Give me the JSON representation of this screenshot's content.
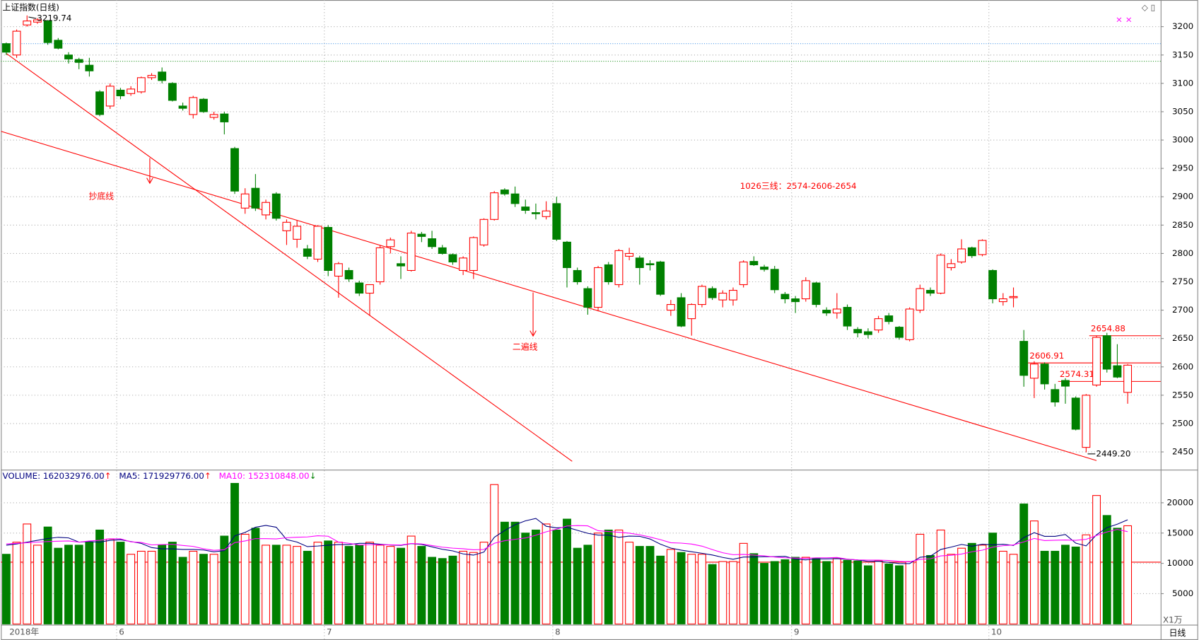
{
  "chart_data": {
    "type": "candlestick",
    "title": "上证指数(日线)",
    "up_color": "#ff0000",
    "down_color": "#008000",
    "ylim": [
      2420,
      3247
    ],
    "yticks": [
      3200,
      3150,
      3100,
      3050,
      3000,
      2950,
      2900,
      2850,
      2800,
      2750,
      2700,
      2650,
      2600,
      2550,
      2500,
      2450
    ],
    "grid": true,
    "x_labels": [
      {
        "index": 0,
        "label": "2018年"
      },
      {
        "index": 11,
        "label": "6"
      },
      {
        "index": 31,
        "label": "7"
      },
      {
        "index": 53,
        "label": "8"
      },
      {
        "index": 76,
        "label": "9"
      },
      {
        "index": 95,
        "label": "10"
      }
    ],
    "candles": [
      [
        3170,
        3172,
        3150,
        3155
      ],
      [
        3150,
        3195,
        3145,
        3192
      ],
      [
        3203,
        3219.74,
        3200,
        3210
      ],
      [
        3208,
        3215,
        3205,
        3212
      ],
      [
        3210,
        3212,
        3168,
        3172
      ],
      [
        3176,
        3180,
        3160,
        3162
      ],
      [
        3150,
        3155,
        3135,
        3143
      ],
      [
        3142,
        3145,
        3125,
        3137
      ],
      [
        3132,
        3145,
        3112,
        3122
      ],
      [
        3085,
        3088,
        3042,
        3045
      ],
      [
        3060,
        3100,
        3055,
        3095
      ],
      [
        3088,
        3092,
        3072,
        3078
      ],
      [
        3082,
        3095,
        3078,
        3090
      ],
      [
        3085,
        3112,
        3082,
        3110
      ],
      [
        3110,
        3118,
        3106,
        3114
      ],
      [
        3120,
        3128,
        3100,
        3105
      ],
      [
        3100,
        3102,
        3068,
        3070
      ],
      [
        3060,
        3066,
        3052,
        3056
      ],
      [
        3045,
        3078,
        3038,
        3075
      ],
      [
        3072,
        3074,
        3048,
        3050
      ],
      [
        3040,
        3050,
        3036,
        3045
      ],
      [
        3046,
        3050,
        3010,
        3032
      ],
      [
        2985,
        2988,
        2905,
        2910
      ],
      [
        2880,
        2915,
        2870,
        2905
      ],
      [
        2915,
        2940,
        2875,
        2880
      ],
      [
        2868,
        2895,
        2860,
        2890
      ],
      [
        2905,
        2908,
        2858,
        2862
      ],
      [
        2840,
        2860,
        2815,
        2855
      ],
      [
        2825,
        2858,
        2810,
        2848
      ],
      [
        2808,
        2815,
        2790,
        2795
      ],
      [
        2790,
        2850,
        2785,
        2848
      ],
      [
        2846,
        2850,
        2760,
        2770
      ],
      [
        2760,
        2785,
        2722,
        2782
      ],
      [
        2770,
        2775,
        2750,
        2755
      ],
      [
        2748,
        2752,
        2725,
        2730
      ],
      [
        2730,
        2745,
        2690,
        2745
      ],
      [
        2750,
        2815,
        2745,
        2810
      ],
      [
        2812,
        2828,
        2800,
        2824
      ],
      [
        2782,
        2795,
        2755,
        2778
      ],
      [
        2770,
        2840,
        2768,
        2836
      ],
      [
        2834,
        2838,
        2820,
        2830
      ],
      [
        2826,
        2840,
        2808,
        2812
      ],
      [
        2810,
        2815,
        2798,
        2800
      ],
      [
        2798,
        2800,
        2780,
        2785
      ],
      [
        2770,
        2795,
        2762,
        2792
      ],
      [
        2770,
        2830,
        2755,
        2828
      ],
      [
        2815,
        2862,
        2812,
        2860
      ],
      [
        2860,
        2910,
        2858,
        2907
      ],
      [
        2912,
        2915,
        2902,
        2905
      ],
      [
        2905,
        2918,
        2882,
        2888
      ],
      [
        2882,
        2895,
        2870,
        2876
      ],
      [
        2872,
        2888,
        2860,
        2870
      ],
      [
        2865,
        2892,
        2860,
        2875
      ],
      [
        2888,
        2900,
        2822,
        2825
      ],
      [
        2820,
        2822,
        2740,
        2775
      ],
      [
        2770,
        2775,
        2745,
        2750
      ],
      [
        2738,
        2742,
        2692,
        2705
      ],
      [
        2705,
        2778,
        2698,
        2775
      ],
      [
        2780,
        2785,
        2745,
        2750
      ],
      [
        2745,
        2808,
        2740,
        2805
      ],
      [
        2795,
        2810,
        2788,
        2800
      ],
      [
        2792,
        2796,
        2745,
        2775
      ],
      [
        2782,
        2788,
        2770,
        2780
      ],
      [
        2785,
        2787,
        2725,
        2728
      ],
      [
        2700,
        2718,
        2690,
        2710
      ],
      [
        2722,
        2730,
        2670,
        2672
      ],
      [
        2685,
        2712,
        2655,
        2710
      ],
      [
        2710,
        2745,
        2705,
        2742
      ],
      [
        2738,
        2742,
        2718,
        2722
      ],
      [
        2718,
        2735,
        2705,
        2730
      ],
      [
        2718,
        2740,
        2708,
        2735
      ],
      [
        2745,
        2788,
        2740,
        2785
      ],
      [
        2786,
        2795,
        2778,
        2780
      ],
      [
        2776,
        2780,
        2768,
        2772
      ],
      [
        2772,
        2778,
        2730,
        2736
      ],
      [
        2728,
        2732,
        2712,
        2720
      ],
      [
        2720,
        2725,
        2695,
        2715
      ],
      [
        2720,
        2758,
        2715,
        2752
      ],
      [
        2748,
        2750,
        2705,
        2710
      ],
      [
        2700,
        2705,
        2690,
        2695
      ],
      [
        2695,
        2730,
        2685,
        2702
      ],
      [
        2705,
        2710,
        2665,
        2672
      ],
      [
        2666,
        2670,
        2652,
        2660
      ],
      [
        2662,
        2668,
        2650,
        2657
      ],
      [
        2665,
        2690,
        2660,
        2685
      ],
      [
        2690,
        2695,
        2675,
        2680
      ],
      [
        2670,
        2672,
        2648,
        2652
      ],
      [
        2648,
        2705,
        2645,
        2702
      ],
      [
        2700,
        2745,
        2695,
        2738
      ],
      [
        2735,
        2740,
        2725,
        2730
      ],
      [
        2730,
        2800,
        2728,
        2797
      ],
      [
        2775,
        2790,
        2770,
        2782
      ],
      [
        2785,
        2825,
        2782,
        2808
      ],
      [
        2810,
        2812,
        2792,
        2796
      ],
      [
        2798,
        2825,
        2795,
        2823
      ],
      [
        2770,
        2772,
        2712,
        2720
      ],
      [
        2715,
        2730,
        2708,
        2720
      ],
      [
        2722,
        2740,
        2705,
        2724
      ],
      [
        2645,
        2665,
        2565,
        2585
      ],
      [
        2580,
        2610,
        2545,
        2605
      ],
      [
        2605,
        2608,
        2560,
        2570
      ],
      [
        2560,
        2570,
        2530,
        2538
      ],
      [
        2576,
        2580,
        2535,
        2566
      ],
      [
        2545,
        2548,
        2488,
        2490
      ],
      [
        2458,
        2552,
        2449.2,
        2550
      ],
      [
        2568,
        2654.88,
        2565,
        2652
      ],
      [
        2655,
        2660,
        2590,
        2596
      ],
      [
        2602,
        2640,
        2580,
        2582
      ],
      [
        2555,
        2605,
        2535,
        2603
      ]
    ],
    "high_label": {
      "index": 2,
      "label": "3219.74"
    },
    "low_label": {
      "index": 104,
      "label": "2449.20"
    },
    "ref_lines": [
      {
        "value": 3170,
        "color": "#3a8ee6"
      },
      {
        "value": 3139,
        "color": "#2e9a2e"
      }
    ],
    "levels": [
      {
        "value": 2654.88,
        "label": "2654.88",
        "from": 104.3
      },
      {
        "value": 2606.91,
        "label": "2606.91",
        "from": 98.4
      },
      {
        "value": 2574.31,
        "label": "2574.31",
        "from": 101.3
      }
    ],
    "trendlines": [
      {
        "x": [
          0,
          54.5
        ],
        "y": [
          3152.7,
          2433.5
        ],
        "color": "#ff0000"
      },
      {
        "x": [
          -0.5,
          105
        ],
        "y": [
          3015.3,
          2434.8
        ],
        "color": "#ff0000"
      }
    ],
    "annotations": [
      "抄底线",
      "二遍线",
      "1026三线：2574-2606-2654"
    ],
    "volume": {
      "header": [
        {
          "label": "VOLUME: 162032976.00",
          "color": "#000080"
        },
        {
          "label": "MA5: 171929776.00",
          "color": "#000080"
        },
        {
          "label": "MA10: 152310848.00",
          "color": "#ff00ff"
        }
      ],
      "unit_label": "X1万",
      "ylim": [
        0,
        25330
      ],
      "yticks": [
        20000,
        15000,
        10000,
        5000
      ],
      "ref_line": 10200,
      "values": [
        11500,
        13500,
        16500,
        13000,
        16000,
        12500,
        13000,
        13000,
        13500,
        15500,
        14000,
        13500,
        11500,
        12000,
        12000,
        13000,
        13500,
        11000,
        12000,
        11500,
        11500,
        14500,
        23200,
        14800,
        15800,
        13000,
        13000,
        13000,
        12800,
        12000,
        13500,
        13700,
        13500,
        12800,
        13000,
        13500,
        13000,
        12800,
        12500,
        14500,
        12800,
        11000,
        10800,
        11200,
        12000,
        11800,
        13500,
        23000,
        16800,
        16800,
        15000,
        15500,
        16500,
        15500,
        17300,
        12500,
        13000,
        15000,
        15500,
        15500,
        13500,
        12800,
        12800,
        11200,
        12300,
        11800,
        11500,
        11500,
        9800,
        10300,
        10300,
        13300,
        11600,
        10000,
        10300,
        10600,
        11000,
        11000,
        10800,
        10300,
        10800,
        10500,
        10400,
        9600,
        10400,
        9900,
        9600,
        10300,
        14800,
        11300,
        15500,
        11500,
        12500,
        13300,
        13000,
        15000,
        12000,
        11500,
        19800,
        17000,
        12000,
        12000,
        13000,
        12700,
        14700,
        21200,
        17900,
        15800,
        16203.2976
      ],
      "ma": [
        {
          "name": "MA5",
          "color": "#000080",
          "values": [
            13000,
            13200,
            13500,
            13800,
            14100,
            14300,
            14200,
            13500,
            13600,
            13500,
            13800,
            13900,
            13600,
            13300,
            12600,
            12400,
            12400,
            12300,
            12300,
            12200,
            11900,
            12100,
            14540,
            15100,
            15960,
            16260,
            15960,
            13920,
            13520,
            12760,
            12860,
            13000,
            13100,
            13100,
            13300,
            13300,
            13160,
            13020,
            12960,
            13260,
            13120,
            12720,
            12320,
            12060,
            11560,
            11360,
            11860,
            14300,
            15420,
            16380,
            17020,
            17420,
            16120,
            15860,
            15960,
            15460,
            14960,
            14660,
            14660,
            14300,
            14500,
            14460,
            14020,
            13160,
            12520,
            12180,
            11920,
            11660,
            11380,
            10980,
            10680,
            11040,
            11060,
            11100,
            11100,
            11160,
            10700,
            10580,
            10740,
            10740,
            10780,
            10680,
            10560,
            10320,
            10340,
            10160,
            9980,
            9960,
            11000,
            11180,
            12300,
            12680,
            13120,
            12820,
            13160,
            13060,
            13160,
            12960,
            14260,
            15060,
            14460,
            14460,
            14760,
            13340,
            12880,
            14720,
            15900,
            16460,
            17192.9776
          ]
        },
        {
          "name": "MA10",
          "color": "#ff00ff",
          "values": [
            13200,
            13300,
            13400,
            13500,
            13600,
            13650,
            13700,
            13500,
            13700,
            13800,
            14050,
            14050,
            13550,
            13450,
            13050,
            13100,
            13150,
            12950,
            12800,
            12400,
            12150,
            12250,
            13420,
            13700,
            14080,
            14080,
            14030,
            14230,
            14310,
            14360,
            14560,
            14480,
            13510,
            13310,
            13030,
            13080,
            13080,
            13060,
            13030,
            13280,
            13210,
            12940,
            12670,
            12510,
            12410,
            12240,
            12290,
            13310,
            13740,
            13970,
            14190,
            14640,
            15210,
            15640,
            16170,
            16240,
            16190,
            15390,
            15260,
            15130,
            14980,
            14710,
            14340,
            13910,
            13410,
            13340,
            13190,
            12840,
            12270,
            11750,
            11430,
            11480,
            11360,
            11240,
            11040,
            10920,
            10870,
            10820,
            10920,
            10920,
            10970,
            10690,
            10570,
            10530,
            10540,
            10470,
            10330,
            10260,
            10660,
            10760,
            11230,
            11330,
            11540,
            11910,
            12170,
            12680,
            12920,
            13040,
            13540,
            14110,
            13760,
            13810,
            13860,
            13800,
            13970,
            14590,
            15180,
            15610,
            15231.0848
          ]
        }
      ]
    },
    "period_label": "日线"
  }
}
